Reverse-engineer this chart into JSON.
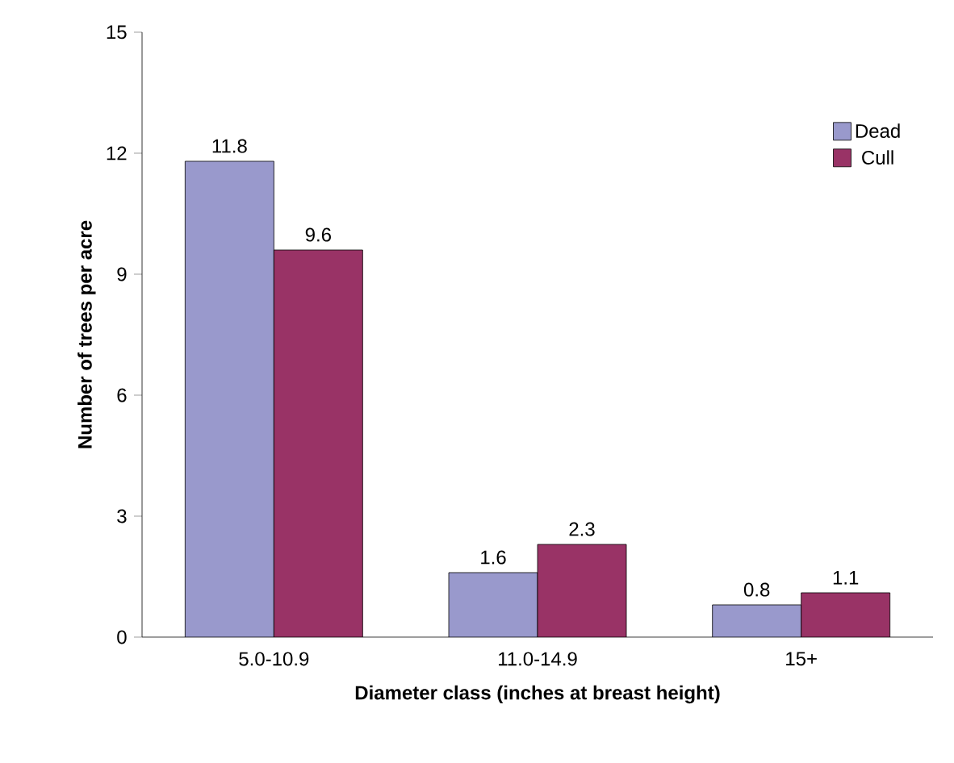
{
  "chart_data": {
    "type": "bar",
    "xlabel": "Diameter class (inches at breast height)",
    "ylabel": "Number of trees per acre",
    "categories": [
      "5.0-10.9",
      "11.0-14.9",
      "15+"
    ],
    "series": [
      {
        "name": "Dead",
        "color": "#9999cc",
        "values": [
          11.8,
          1.6,
          0.8
        ]
      },
      {
        "name": "Cull",
        "color": "#993366",
        "values": [
          9.6,
          2.3,
          1.1
        ]
      }
    ],
    "ylim": [
      0,
      15
    ],
    "yticks": [
      0,
      3,
      6,
      9,
      12,
      15
    ],
    "data_labels": true,
    "legend": "top right",
    "grid": false
  }
}
